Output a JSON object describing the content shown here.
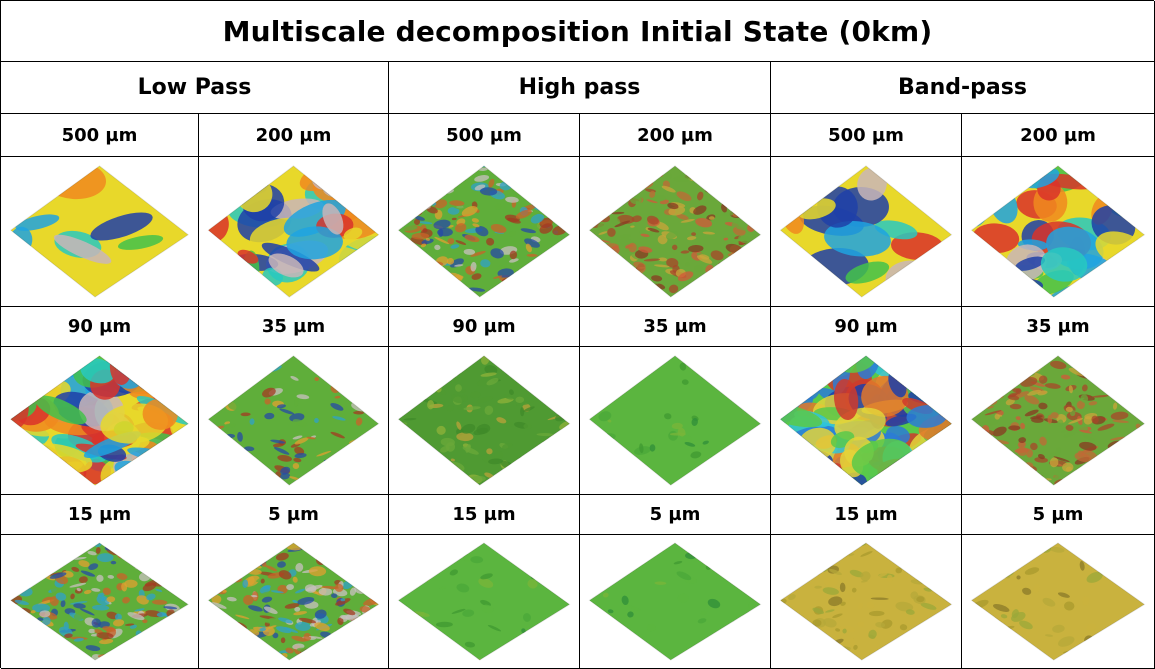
{
  "title": "Multiscale decomposition Initial State (0km)",
  "groups": [
    "Low Pass",
    "High pass",
    "Band-pass"
  ],
  "rows": [
    {
      "labels": [
        "500 µm",
        "200 µm",
        "500 µm",
        "200 µm",
        "500 µm",
        "200 µm"
      ],
      "surfaces": [
        {
          "style": "smooth-rainbow",
          "noise": "very low"
        },
        {
          "style": "smooth-rainbow",
          "noise": "low"
        },
        {
          "style": "rough-mixed",
          "noise": "high"
        },
        {
          "style": "rough-red",
          "noise": "high"
        },
        {
          "style": "smooth-rainbow",
          "noise": "very low"
        },
        {
          "style": "smooth-rainbow",
          "noise": "low"
        }
      ]
    },
    {
      "labels": [
        "90 µm",
        "35 µm",
        "90 µm",
        "35 µm",
        "90 µm",
        "35 µm"
      ],
      "surfaces": [
        {
          "style": "smooth-rainbow",
          "noise": "medium"
        },
        {
          "style": "rough-mixed",
          "noise": "medium"
        },
        {
          "style": "green-olive",
          "noise": "medium"
        },
        {
          "style": "green",
          "noise": "low"
        },
        {
          "style": "blue-rainbow",
          "noise": "medium"
        },
        {
          "style": "rough-red",
          "noise": "high"
        }
      ]
    },
    {
      "labels": [
        "15 µm",
        "5 µm",
        "15 µm",
        "5 µm",
        "15 µm",
        "5 µm"
      ],
      "surfaces": [
        {
          "style": "rough-mixed",
          "noise": "high"
        },
        {
          "style": "rough-mixed",
          "noise": "high"
        },
        {
          "style": "green",
          "noise": "low"
        },
        {
          "style": "green",
          "noise": "low"
        },
        {
          "style": "olive",
          "noise": "medium"
        },
        {
          "style": "olive",
          "noise": "low"
        }
      ]
    }
  ],
  "palettes": {
    "smooth-rainbow": [
      "#1e3fa8",
      "#1fa3e0",
      "#28c9c0",
      "#43c24a",
      "#e8d82a",
      "#f08a1e",
      "#d9322a",
      "#c9b6b8"
    ],
    "blue-rainbow": [
      "#1e3fa8",
      "#2b7bd6",
      "#30c4d8",
      "#59c94a",
      "#e3d33a",
      "#e2782a",
      "#cf3a2c"
    ],
    "rough-mixed": [
      "#a33a22",
      "#c9622a",
      "#e0a030",
      "#5fae3a",
      "#2fa2c8",
      "#2549a6",
      "#c8c0c0"
    ],
    "rough-red": [
      "#a8472a",
      "#c06a35",
      "#8a3a22",
      "#6aa83a",
      "#c9a63a",
      "#d25a3a"
    ],
    "green-olive": [
      "#6aa83a",
      "#8fb23a",
      "#4f9a32",
      "#b9a23a",
      "#3f8a2a"
    ],
    "green": [
      "#4aa83a",
      "#3f9a32",
      "#5bb53f",
      "#2f8f3a",
      "#7ab63a"
    ],
    "olive": [
      "#b6a83a",
      "#a89a2e",
      "#c9b23e",
      "#8a7a2a",
      "#9aa83a"
    ]
  }
}
